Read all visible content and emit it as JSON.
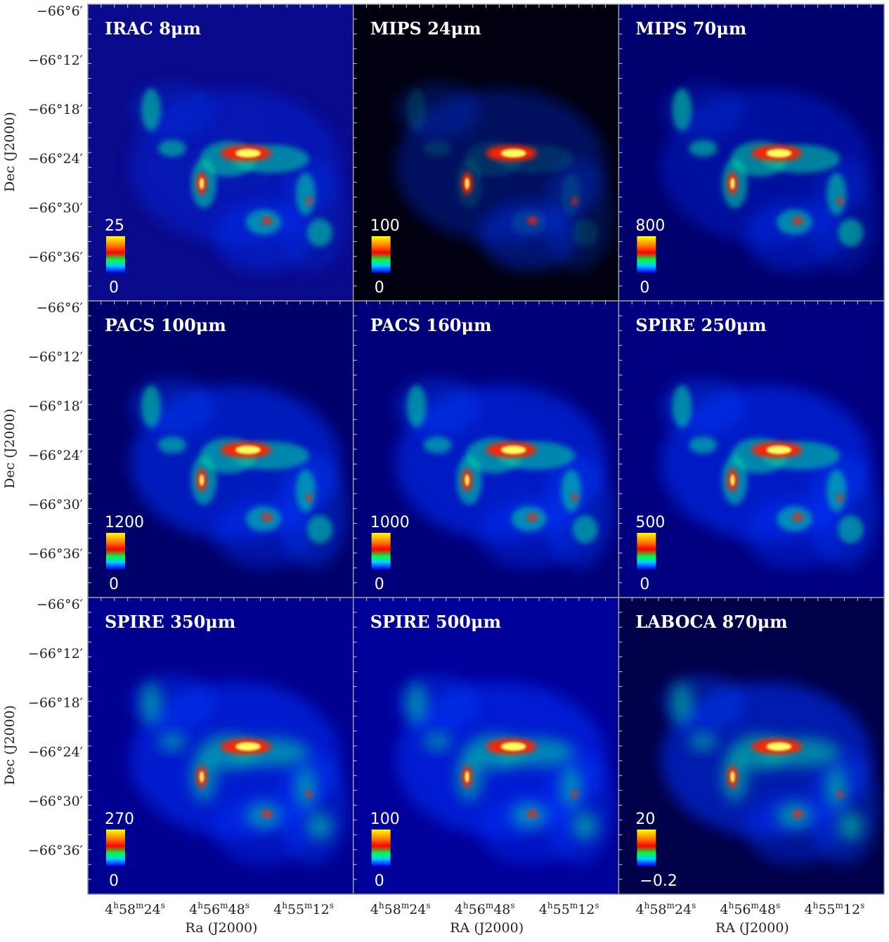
{
  "panels": [
    {
      "title": "IRAC 8μm",
      "cbar_max": "25",
      "cbar_min": "0"
    },
    {
      "title": "MIPS 24μm",
      "cbar_max": "100",
      "cbar_min": "0"
    },
    {
      "title": "MIPS 70μm",
      "cbar_max": "800",
      "cbar_min": "0"
    },
    {
      "title": "PACS 100μm",
      "cbar_max": "1200",
      "cbar_min": "0"
    },
    {
      "title": "PACS 160μm",
      "cbar_max": "1000",
      "cbar_min": "0"
    },
    {
      "title": "SPIRE 250μm",
      "cbar_max": "500",
      "cbar_min": "0"
    },
    {
      "title": "SPIRE 350μm",
      "cbar_max": "270",
      "cbar_min": "0"
    },
    {
      "title": "SPIRE 500μm",
      "cbar_max": "100",
      "cbar_min": "0"
    },
    {
      "title": "LABOCA 870μm",
      "cbar_max": "20",
      "cbar_min": "−0.2"
    }
  ],
  "y_label": "Dec (J2000)",
  "y_ticks": [
    "−66°6′",
    "−66°12′",
    "−66°18′",
    "−66°24′",
    "−66°30′",
    "−66°36′"
  ],
  "x_ticks": [
    [
      "4",
      "h",
      "58",
      "m",
      "24",
      "s"
    ],
    [
      "4",
      "h",
      "56",
      "m",
      "48",
      "s"
    ],
    [
      "4",
      "h",
      "55",
      "m",
      "12",
      "s"
    ]
  ],
  "x_labels": [
    "Ra (J2000)",
    "RA (J2000)",
    "RA (J2000)"
  ]
}
